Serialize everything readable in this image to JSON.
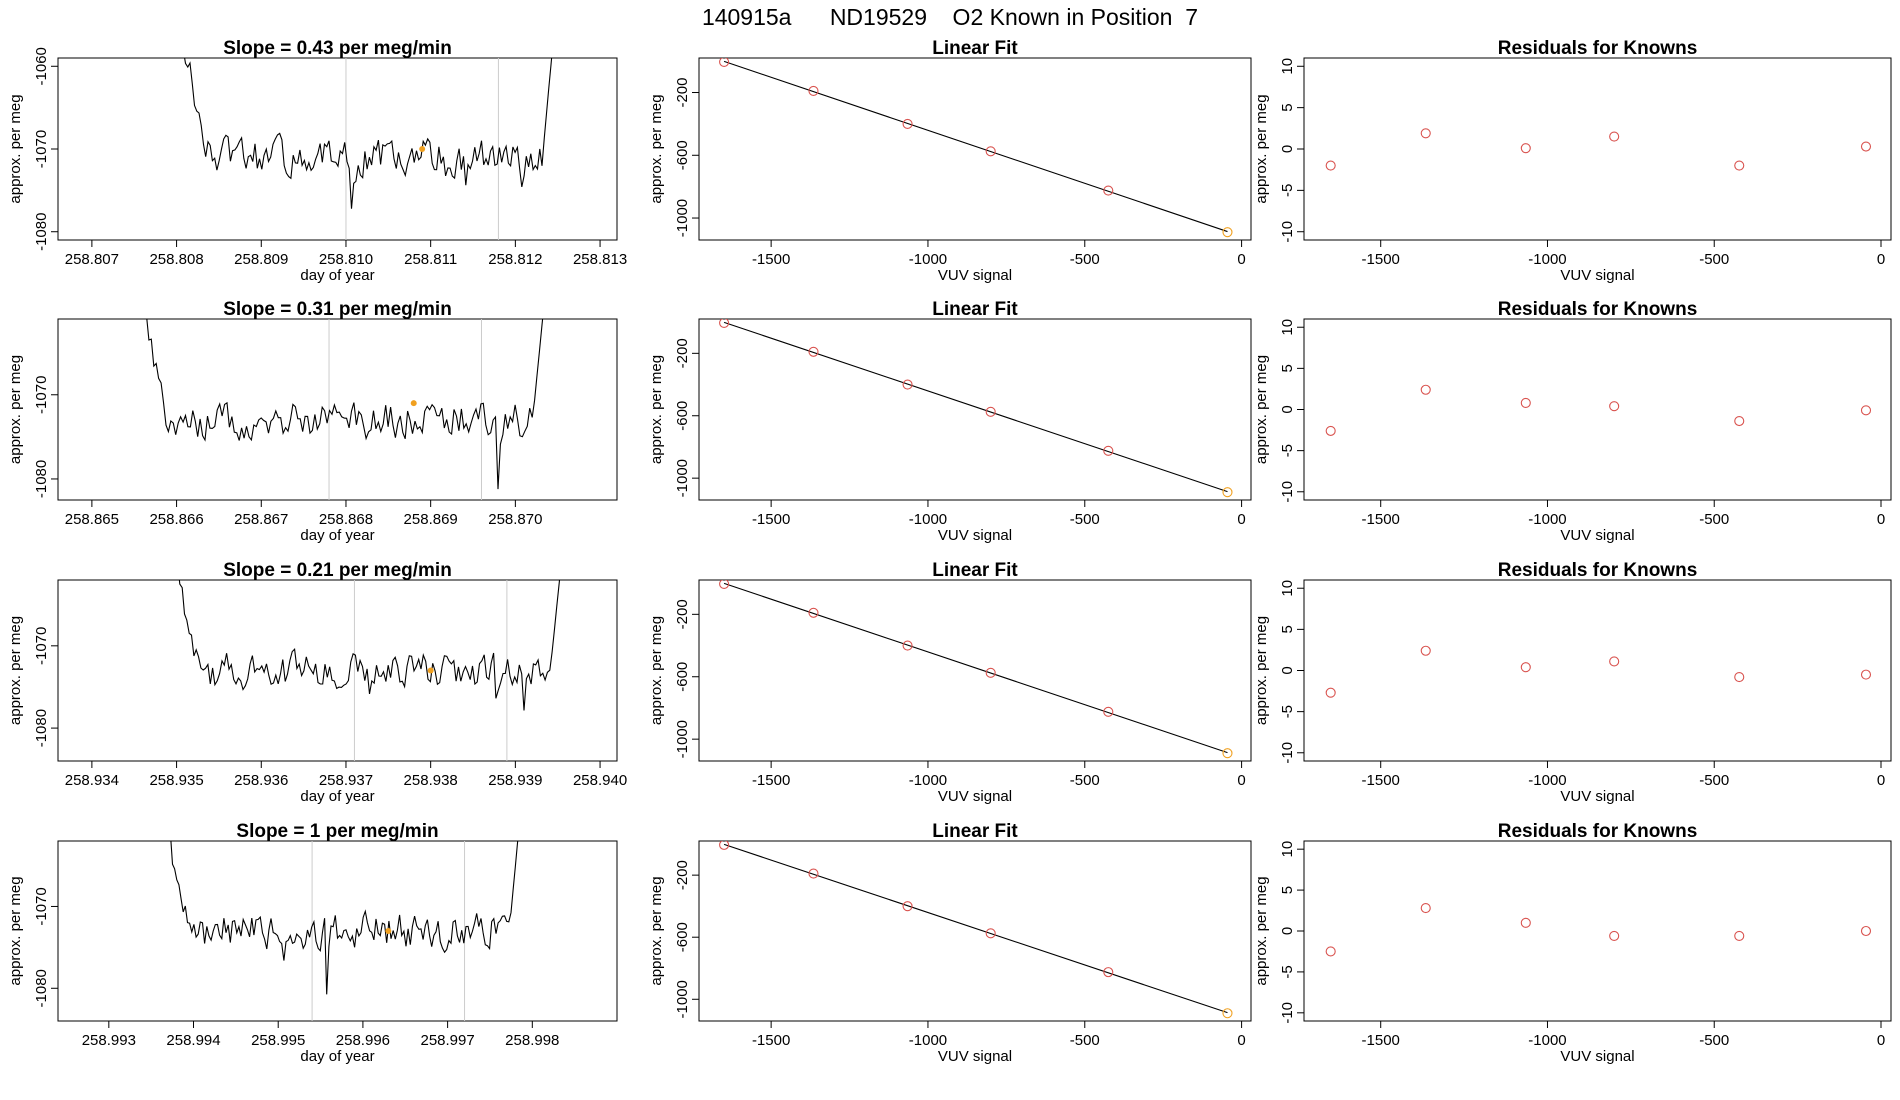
{
  "page_title": "140915a      ND19529    O2 Known in Position  7",
  "colors": {
    "line": "#000000",
    "points": "#d9534f",
    "accent": "#f0a020",
    "vline": "#cccccc"
  },
  "chart_data": [
    {
      "type": "line",
      "row": 1,
      "title": "Slope =  0.43  per meg/min",
      "xlabel": "day of year",
      "ylabel": "approx. per meg",
      "xlim": [
        258.8066,
        258.8132
      ],
      "ylim": [
        -1081,
        -1059
      ],
      "xticks": [
        "258.807",
        "258.808",
        "258.809",
        "258.810",
        "258.811",
        "258.812",
        "258.813"
      ],
      "yticks": [
        "-1060",
        "-1070",
        "-1080"
      ],
      "vlines": [
        258.81,
        258.8118
      ],
      "accent_point": {
        "x": 258.8109,
        "y": -1070
      },
      "trace_range": [
        258.808,
        258.8125
      ],
      "trace_level": -1071,
      "trace_amp": 3
    },
    {
      "type": "scatter",
      "row": 1,
      "title": "Linear Fit",
      "xlabel": "VUV signal",
      "ylabel": "approx. per meg",
      "xlim": [
        -1730,
        30
      ],
      "ylim": [
        -1140,
        20
      ],
      "xticks": [
        "-1500",
        "-1000",
        "-500",
        "0"
      ],
      "yticks": [
        "-200",
        "-600",
        "-1000"
      ],
      "x": [
        -1650,
        -1365,
        -1065,
        -800,
        -425,
        -45
      ],
      "y": [
        -5,
        -190,
        -400,
        -575,
        -825,
        -1090
      ],
      "fit_line": true
    },
    {
      "type": "scatter",
      "row": 1,
      "title": "Residuals for Knowns",
      "xlabel": "VUV signal",
      "ylabel": "approx. per meg",
      "xlim": [
        -1730,
        30
      ],
      "ylim": [
        -11,
        11
      ],
      "xticks": [
        "-1500",
        "-1000",
        "-500",
        "0"
      ],
      "yticks": [
        "10",
        "5",
        "0",
        "-5",
        "-10"
      ],
      "x": [
        -1650,
        -1365,
        -1065,
        -800,
        -425,
        -45
      ],
      "y": [
        -2.0,
        1.9,
        0.1,
        1.5,
        -2.0,
        0.3
      ]
    },
    {
      "type": "line",
      "row": 2,
      "title": "Slope =  0.31  per meg/min",
      "xlabel": "day of year",
      "ylabel": "approx. per meg",
      "xlim": [
        258.8646,
        258.8712
      ],
      "ylim": [
        -1082.5,
        -1061
      ],
      "xticks": [
        "258.865",
        "258.866",
        "258.867",
        "258.868",
        "258.869",
        "258.870"
      ],
      "yticks": [
        "-1070",
        "-1080"
      ],
      "vlines": [
        258.8678,
        258.8696
      ],
      "accent_point": {
        "x": 258.8688,
        "y": -1071
      },
      "trace_range": [
        258.8655,
        258.8704
      ],
      "trace_level": -1073,
      "trace_amp": 3
    },
    {
      "type": "scatter",
      "row": 2,
      "title": "Linear Fit",
      "xlabel": "VUV signal",
      "ylabel": "approx. per meg",
      "xlim": [
        -1730,
        30
      ],
      "ylim": [
        -1140,
        20
      ],
      "xticks": [
        "-1500",
        "-1000",
        "-500",
        "0"
      ],
      "yticks": [
        "-200",
        "-600",
        "-1000"
      ],
      "x": [
        -1650,
        -1365,
        -1065,
        -800,
        -425,
        -45
      ],
      "y": [
        -5,
        -190,
        -400,
        -575,
        -825,
        -1090
      ],
      "fit_line": true
    },
    {
      "type": "scatter",
      "row": 2,
      "title": "Residuals for Knowns",
      "xlabel": "VUV signal",
      "ylabel": "approx. per meg",
      "xlim": [
        -1730,
        30
      ],
      "ylim": [
        -11,
        11
      ],
      "xticks": [
        "-1500",
        "-1000",
        "-500",
        "0"
      ],
      "yticks": [
        "10",
        "5",
        "0",
        "-5",
        "-10"
      ],
      "x": [
        -1650,
        -1365,
        -1065,
        -800,
        -425,
        -45
      ],
      "y": [
        -2.6,
        2.4,
        0.8,
        0.4,
        -1.4,
        -0.1
      ]
    },
    {
      "type": "line",
      "row": 3,
      "title": "Slope =  0.21  per meg/min",
      "xlabel": "day of year",
      "ylabel": "approx. per meg",
      "xlim": [
        258.9336,
        258.9402
      ],
      "ylim": [
        -1084,
        -1062
      ],
      "xticks": [
        "258.934",
        "258.935",
        "258.936",
        "258.937",
        "258.938",
        "258.939",
        "258.940"
      ],
      "yticks": [
        "-1070",
        "-1080"
      ],
      "vlines": [
        258.9371,
        258.9389
      ],
      "accent_point": {
        "x": 258.938,
        "y": -1073
      },
      "trace_range": [
        258.9349,
        258.9396
      ],
      "trace_level": -1073,
      "trace_amp": 3
    },
    {
      "type": "scatter",
      "row": 3,
      "title": "Linear Fit",
      "xlabel": "VUV signal",
      "ylabel": "approx. per meg",
      "xlim": [
        -1730,
        30
      ],
      "ylim": [
        -1140,
        20
      ],
      "xticks": [
        "-1500",
        "-1000",
        "-500",
        "0"
      ],
      "yticks": [
        "-200",
        "-600",
        "-1000"
      ],
      "x": [
        -1650,
        -1365,
        -1065,
        -800,
        -425,
        -45
      ],
      "y": [
        -5,
        -190,
        -400,
        -575,
        -825,
        -1090
      ],
      "fit_line": true
    },
    {
      "type": "scatter",
      "row": 3,
      "title": "Residuals for Knowns",
      "xlabel": "VUV signal",
      "ylabel": "approx. per meg",
      "xlim": [
        -1730,
        30
      ],
      "ylim": [
        -11,
        11
      ],
      "xticks": [
        "-1500",
        "-1000",
        "-500",
        "0"
      ],
      "yticks": [
        "10",
        "5",
        "0",
        "-5",
        "-10"
      ],
      "x": [
        -1650,
        -1365,
        -1065,
        -800,
        -425,
        -45
      ],
      "y": [
        -2.7,
        2.4,
        0.4,
        1.1,
        -0.8,
        -0.5
      ]
    },
    {
      "type": "line",
      "row": 4,
      "title": "Slope =  1  per meg/min",
      "xlabel": "day of year",
      "ylabel": "approx. per meg",
      "xlim": [
        258.9924,
        258.999
      ],
      "ylim": [
        -1084,
        -1062
      ],
      "xticks": [
        "258.993",
        "258.994",
        "258.995",
        "258.996",
        "258.997",
        "258.998"
      ],
      "yticks": [
        "-1070",
        "-1080"
      ],
      "vlines": [
        258.9954,
        258.9972
      ],
      "accent_point": {
        "x": 258.9963,
        "y": -1073
      },
      "trace_range": [
        258.9936,
        258.9979
      ],
      "trace_level": -1073,
      "trace_amp": 3
    },
    {
      "type": "scatter",
      "row": 4,
      "title": "Linear Fit",
      "xlabel": "VUV signal",
      "ylabel": "approx. per meg",
      "xlim": [
        -1730,
        30
      ],
      "ylim": [
        -1140,
        20
      ],
      "xticks": [
        "-1500",
        "-1000",
        "-500",
        "0"
      ],
      "yticks": [
        "-200",
        "-600",
        "-1000"
      ],
      "x": [
        -1650,
        -1365,
        -1065,
        -800,
        -425,
        -45
      ],
      "y": [
        -5,
        -190,
        -400,
        -575,
        -825,
        -1090
      ],
      "fit_line": true
    },
    {
      "type": "scatter",
      "row": 4,
      "title": "Residuals for Knowns",
      "xlabel": "VUV signal",
      "ylabel": "approx. per meg",
      "xlim": [
        -1730,
        30
      ],
      "ylim": [
        -11,
        11
      ],
      "xticks": [
        "-1500",
        "-1000",
        "-500",
        "0"
      ],
      "yticks": [
        "10",
        "5",
        "0",
        "-5",
        "-10"
      ],
      "x": [
        -1650,
        -1365,
        -1065,
        -800,
        -425,
        -45
      ],
      "y": [
        -2.5,
        2.8,
        1.0,
        -0.6,
        -0.6,
        0.0
      ]
    }
  ]
}
